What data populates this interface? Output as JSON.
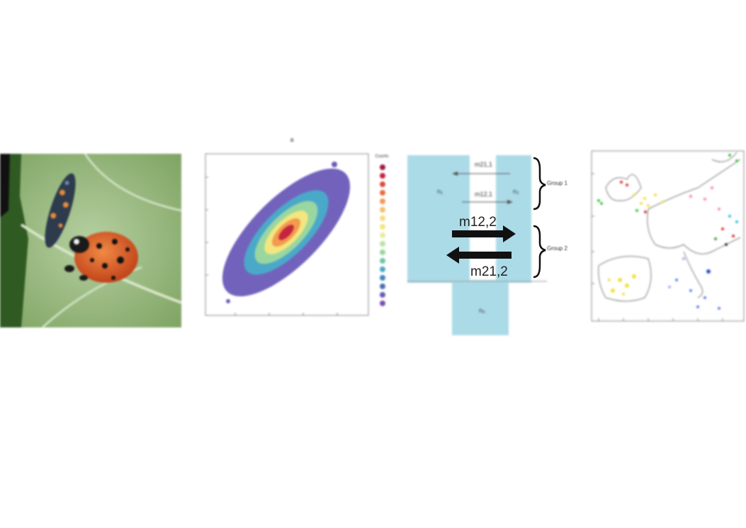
{
  "figure": {
    "panel_b_letter": "a",
    "density_plot": {
      "colorbar_title": "Counts"
    },
    "migration_diagram": {
      "m12_1": "m12,1",
      "m21_1": "m21,1",
      "m12_2": "m12,2",
      "m21_2": "m21,2",
      "group1": "Group 1",
      "group2": "Group 2"
    }
  },
  "colors": {
    "population_box": "#acdbe8",
    "leaf_green": "#8fb36e",
    "ladybird_red": "#d9531e"
  }
}
